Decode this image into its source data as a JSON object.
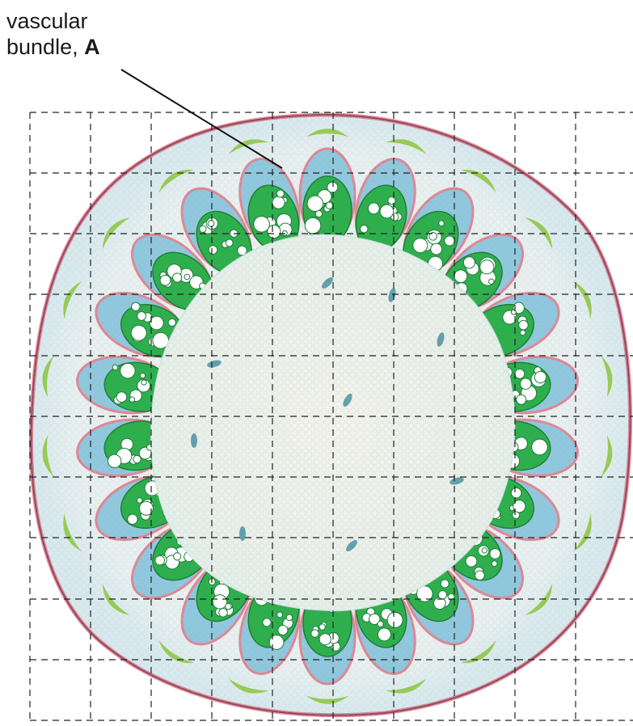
{
  "label": {
    "line1": "vascular",
    "line2_text": "bundle, ",
    "line2_letter": "A"
  },
  "colors": {
    "xylem_green": "#2fae4e",
    "phloem_blue": "#4aa8cf",
    "cortex_red": "#d8344f",
    "pith_cream": "#f4f1e8",
    "grid_dash": "#222222"
  }
}
